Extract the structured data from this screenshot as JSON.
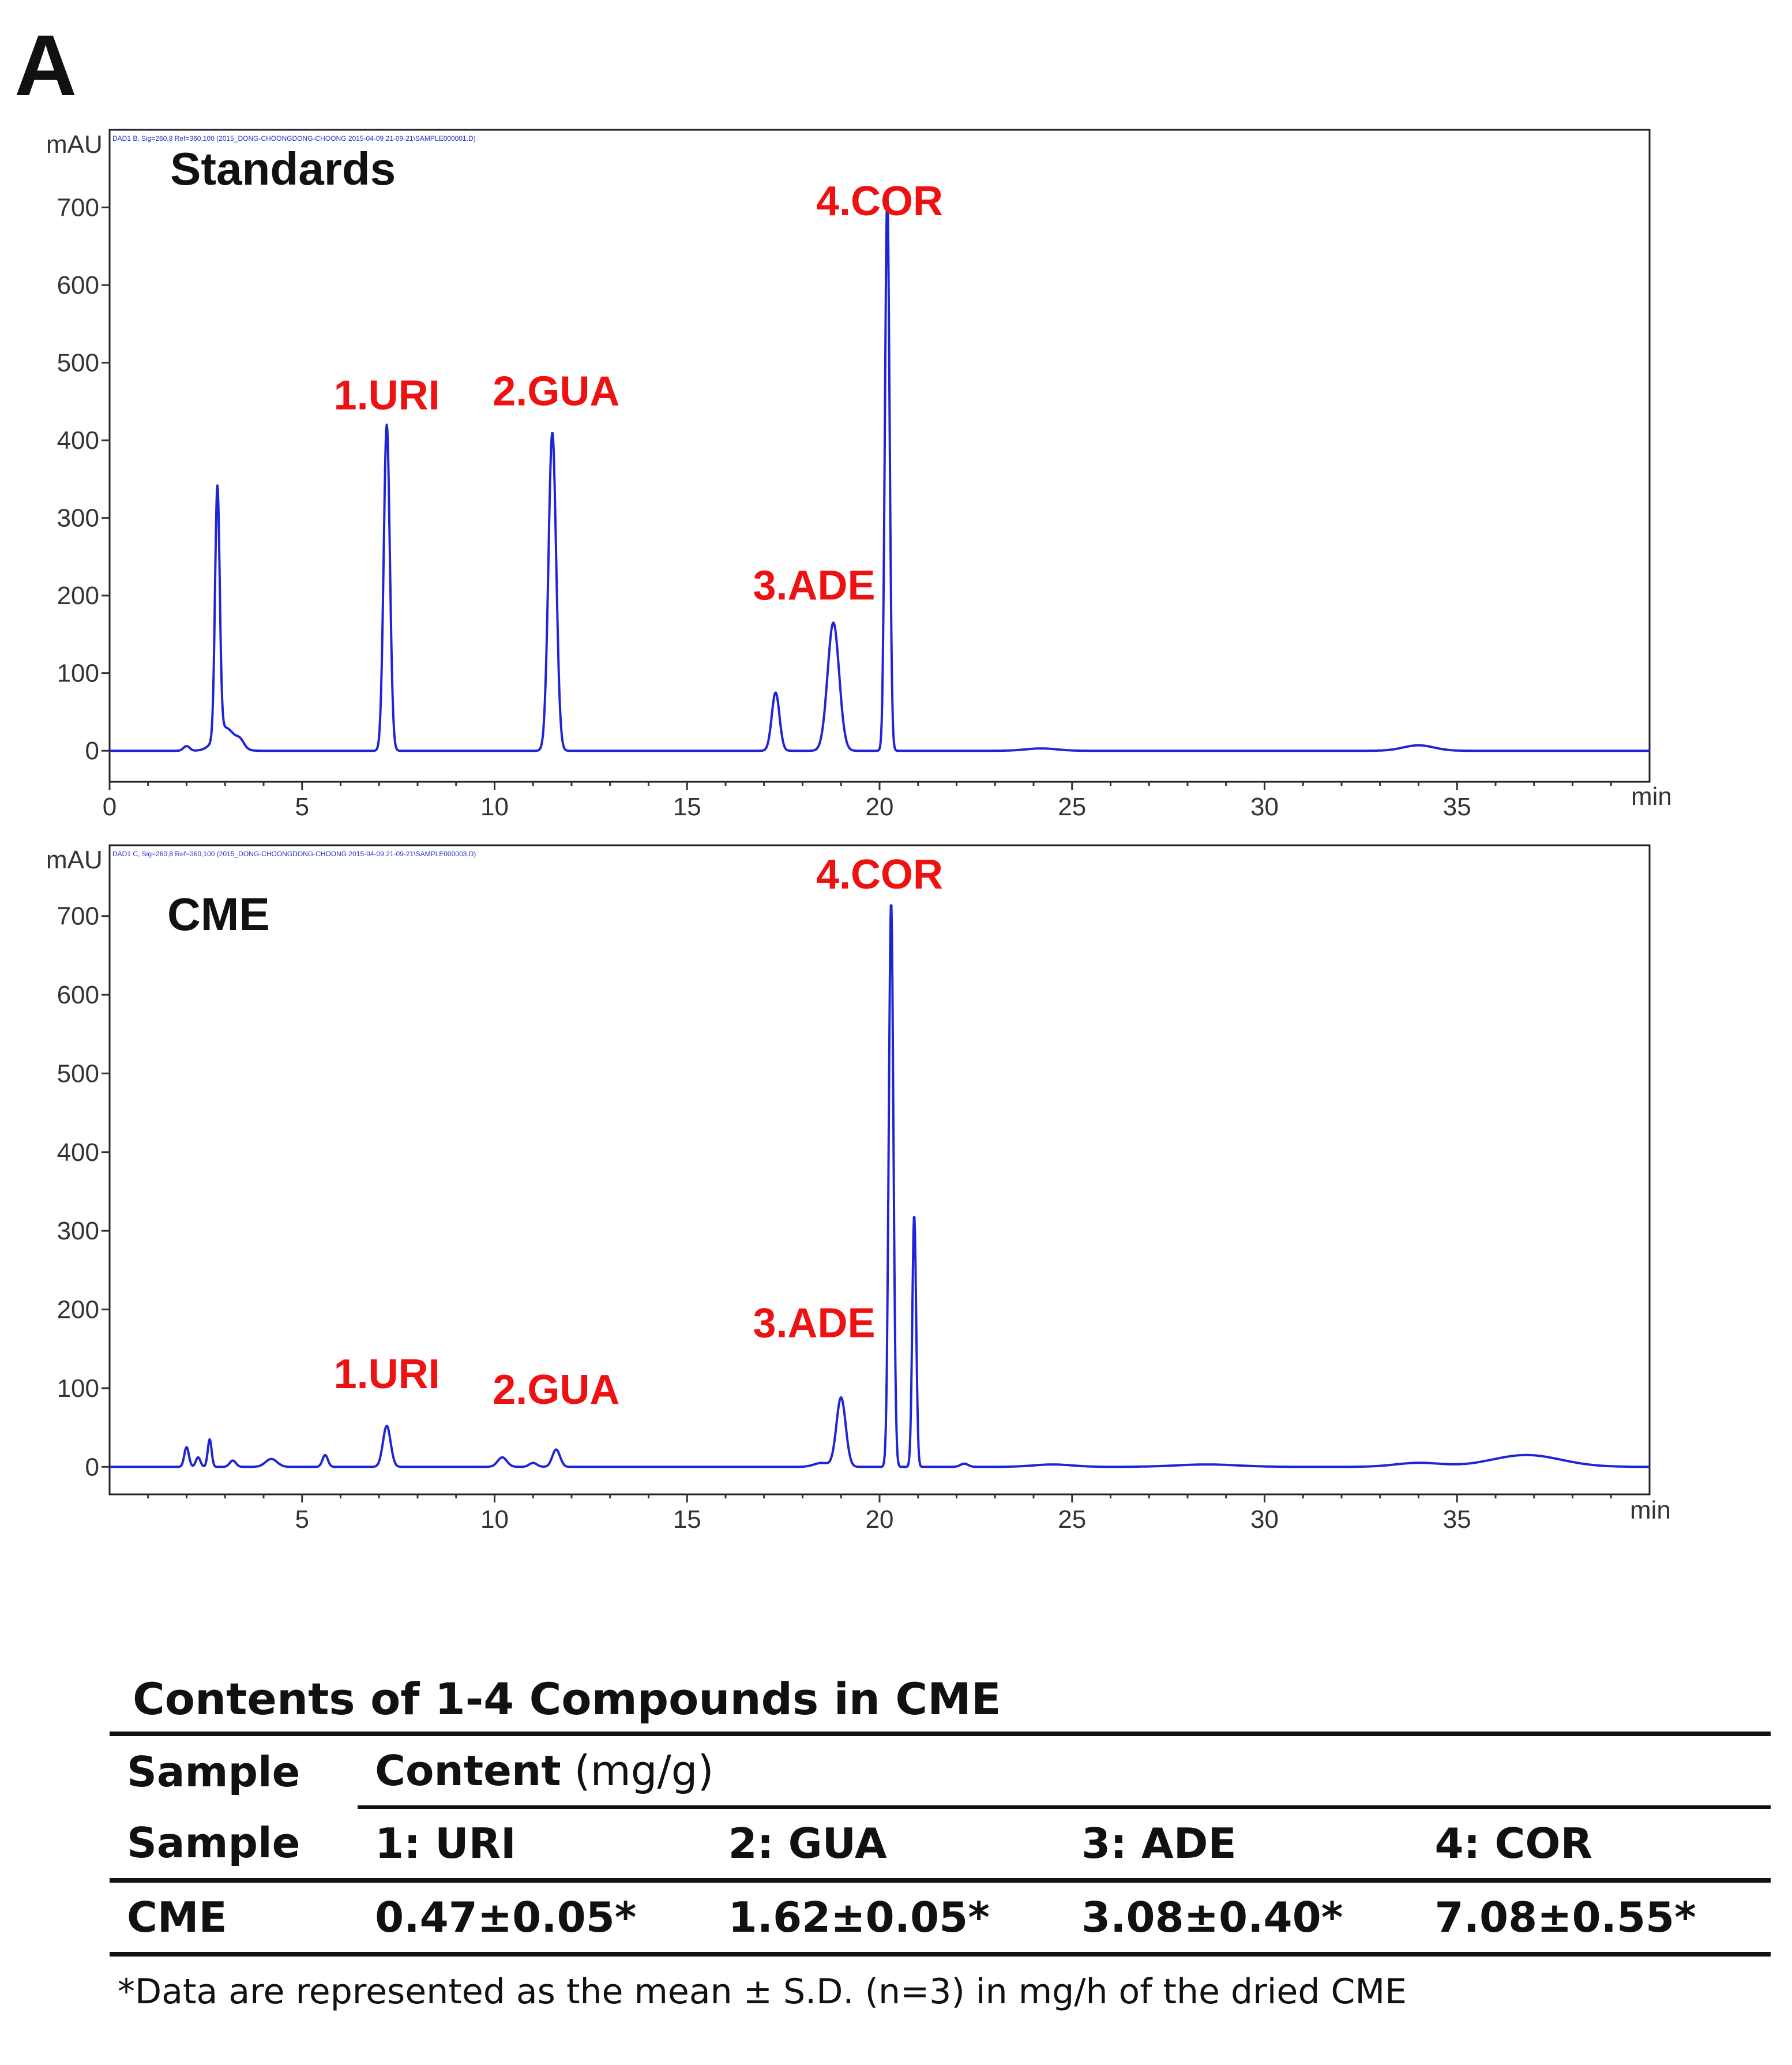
{
  "panel_label": "A",
  "chart_data": [
    {
      "type": "line",
      "title": "Standards",
      "ylabel": "mAU",
      "xlabel": "min",
      "header_text": "DAD1 B, Sig=260,8 Ref=360,100 (2015_DONG-CHOONGDONG-CHOONG 2015-04-09 21-09-21\\SAMPLE000001.D)",
      "xlim": [
        0,
        40
      ],
      "ylim": [
        -40,
        800
      ],
      "x_ticks": [
        0,
        5,
        10,
        15,
        20,
        25,
        30,
        35
      ],
      "y_ticks": [
        0,
        100,
        200,
        300,
        400,
        500,
        600,
        700
      ],
      "grid": false,
      "peaks": [
        {
          "x": 2.0,
          "y": 6,
          "w": 0.08
        },
        {
          "x": 2.8,
          "y": 320,
          "w": 0.06
        },
        {
          "x": 3.0,
          "y": 30,
          "w": 0.25
        },
        {
          "x": 3.4,
          "y": 8,
          "w": 0.1
        },
        {
          "x": 7.2,
          "y": 420,
          "w": 0.08
        },
        {
          "x": 11.5,
          "y": 410,
          "w": 0.1
        },
        {
          "x": 17.3,
          "y": 75,
          "w": 0.1
        },
        {
          "x": 18.8,
          "y": 165,
          "w": 0.15
        },
        {
          "x": 20.2,
          "y": 720,
          "w": 0.06
        },
        {
          "x": 24.2,
          "y": 3,
          "w": 0.4
        },
        {
          "x": 34.0,
          "y": 7,
          "w": 0.4
        }
      ],
      "annotations": [
        {
          "text": "1.URI",
          "x": 7.2,
          "y": 440
        },
        {
          "text": "2.GUA",
          "x": 11.6,
          "y": 445
        },
        {
          "text": "3.ADE",
          "x": 18.3,
          "y": 195
        },
        {
          "text": "4.COR",
          "x": 20.0,
          "y": 690
        }
      ]
    },
    {
      "type": "line",
      "title": "CME",
      "ylabel": "mAU",
      "xlabel": "min",
      "header_text": "DAD1 C, Sig=260,8 Ref=360,100 (2015_DONG-CHOONGDONG-CHOONG 2015-04-09 21-09-21\\SAMPLE000003.D)",
      "xlim": [
        0,
        40
      ],
      "ylim": [
        -35,
        790
      ],
      "x_ticks": [
        5,
        10,
        15,
        20,
        25,
        30,
        35
      ],
      "y_ticks": [
        0,
        100,
        200,
        300,
        400,
        500,
        600,
        700
      ],
      "grid": false,
      "peaks": [
        {
          "x": 2.0,
          "y": 25,
          "w": 0.06
        },
        {
          "x": 2.3,
          "y": 12,
          "w": 0.06
        },
        {
          "x": 2.6,
          "y": 35,
          "w": 0.05
        },
        {
          "x": 3.2,
          "y": 8,
          "w": 0.08
        },
        {
          "x": 4.2,
          "y": 10,
          "w": 0.15
        },
        {
          "x": 5.6,
          "y": 15,
          "w": 0.07
        },
        {
          "x": 7.2,
          "y": 52,
          "w": 0.1
        },
        {
          "x": 10.2,
          "y": 12,
          "w": 0.12
        },
        {
          "x": 11.0,
          "y": 5,
          "w": 0.1
        },
        {
          "x": 11.6,
          "y": 22,
          "w": 0.1
        },
        {
          "x": 18.5,
          "y": 5,
          "w": 0.2
        },
        {
          "x": 19.0,
          "y": 88,
          "w": 0.12
        },
        {
          "x": 20.3,
          "y": 718,
          "w": 0.06
        },
        {
          "x": 20.9,
          "y": 320,
          "w": 0.05
        },
        {
          "x": 22.2,
          "y": 4,
          "w": 0.1
        },
        {
          "x": 24.5,
          "y": 3,
          "w": 0.5
        },
        {
          "x": 28.5,
          "y": 3,
          "w": 0.8
        },
        {
          "x": 34.0,
          "y": 5,
          "w": 0.6
        },
        {
          "x": 36.8,
          "y": 15,
          "w": 0.9
        }
      ],
      "annotations": [
        {
          "text": "1.URI",
          "x": 7.2,
          "y": 100
        },
        {
          "text": "2.GUA",
          "x": 11.6,
          "y": 80
        },
        {
          "text": "3.ADE",
          "x": 18.3,
          "y": 165
        },
        {
          "text": "4.COR",
          "x": 20.0,
          "y": 735
        }
      ]
    },
    {
      "type": "table",
      "title": "Contents of 1-4 Compounds in CME",
      "header_row1": {
        "sample": "Sample",
        "content": "Content",
        "unit": "(mg/g)"
      },
      "header_row2": [
        "Sample",
        "1: URI",
        "2: GUA",
        "3: ADE",
        "4: COR"
      ],
      "rows": [
        [
          "CME",
          "0.47±0.05*",
          "1.62±0.05*",
          "3.08±0.40*",
          "7.08±0.55*"
        ]
      ],
      "footnote": "*Data are represented as the mean ± S.D. (n=3) in mg/h of the dried CME"
    }
  ]
}
